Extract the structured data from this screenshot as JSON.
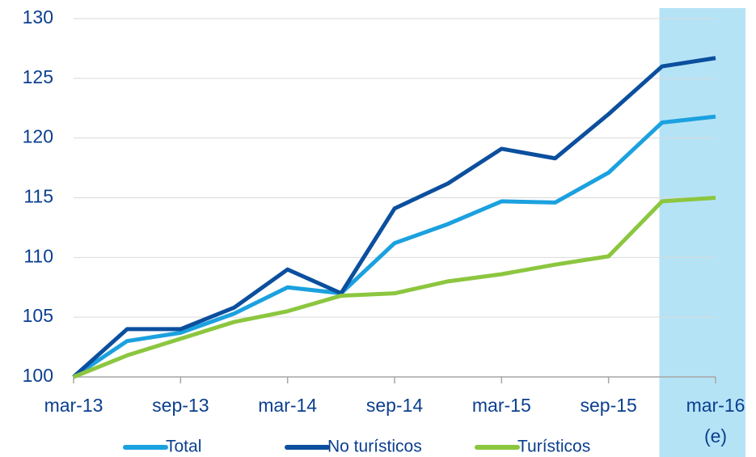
{
  "chart_data": {
    "type": "line",
    "categories": [
      "mar-13",
      null,
      "sep-13",
      null,
      "mar-14",
      null,
      "sep-14",
      null,
      "mar-15",
      null,
      "sep-15",
      null,
      "mar-16"
    ],
    "x_note": "(e)",
    "shaded_from": 11,
    "shade_color": "#b5e3f6",
    "series": [
      {
        "name": "Total",
        "color": "#1ba1df",
        "values": [
          100,
          103.0,
          103.7,
          105.3,
          107.5,
          107.0,
          111.2,
          112.8,
          114.7,
          114.6,
          117.1,
          121.3,
          121.8
        ]
      },
      {
        "name": "No turísticos",
        "color": "#0b4f9e",
        "values": [
          100,
          104.0,
          104.0,
          105.8,
          109.0,
          107.0,
          114.1,
          116.2,
          119.1,
          118.3,
          122.0,
          126.0,
          126.7
        ]
      },
      {
        "name": "Turísticos",
        "color": "#8cc63f",
        "values": [
          100,
          101.8,
          103.2,
          104.6,
          105.5,
          106.8,
          107.0,
          108.0,
          108.6,
          109.4,
          110.1,
          114.7,
          115.0
        ]
      }
    ],
    "ylim": [
      100,
      130
    ],
    "yticks": [
      100,
      105,
      110,
      115,
      120,
      125,
      130
    ],
    "grid": true
  }
}
